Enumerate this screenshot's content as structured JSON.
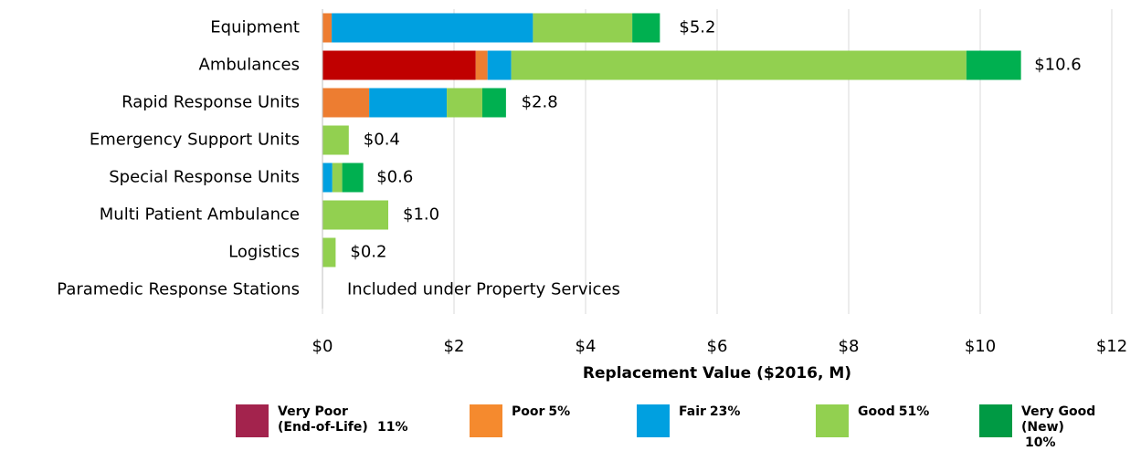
{
  "chart_data": {
    "type": "stacked-barh",
    "categories": [
      "Equipment",
      "Ambulances",
      "Rapid Response Units",
      "Emergency Support Units",
      "Special Response Units",
      "Multi Patient Ambulance",
      "Logistics",
      "Paramedic Response Stations"
    ],
    "series": [
      {
        "name": "Very Poor (End-of-Life)",
        "color": "#c00000",
        "legend_color": "#a3234d",
        "legend_note": "11%",
        "values": [
          0,
          2.33,
          0,
          0,
          0,
          0,
          0,
          0
        ]
      },
      {
        "name": "Poor",
        "color": "#ed7d31",
        "legend_color": "#f58a2e",
        "legend_note": "5%",
        "values": [
          0.14,
          0.18,
          0.71,
          0,
          0,
          0,
          0,
          0
        ]
      },
      {
        "name": "Fair",
        "color": "#00a0e0",
        "legend_color": "#00a0e0",
        "legend_note": "23%",
        "values": [
          3.06,
          0.36,
          1.18,
          0,
          0.15,
          0,
          0,
          0
        ]
      },
      {
        "name": "Good",
        "color": "#92d050",
        "legend_color": "#92d050",
        "legend_note": "51%",
        "values": [
          1.51,
          6.92,
          0.54,
          0.4,
          0.15,
          1.0,
          0.2,
          0
        ]
      },
      {
        "name": "Very Good (New)",
        "color": "#00b050",
        "legend_color": "#009a44",
        "legend_note": "10%",
        "values": [
          0.42,
          0.83,
          0.36,
          0,
          0.32,
          0,
          0,
          0
        ]
      }
    ],
    "totals": [
      5.2,
      10.6,
      2.8,
      0.4,
      0.6,
      1.0,
      0.2,
      null
    ],
    "total_labels": [
      "$5.2",
      "$10.6",
      "$2.8",
      "$0.4",
      "$0.6",
      "$1.0",
      "$0.2",
      null
    ],
    "annotation": "Included under Property Services",
    "xlabel": "Replacement Value ($2016, M)",
    "xlim": [
      0,
      12
    ],
    "xticks": [
      {
        "value": 0,
        "label": "$0"
      },
      {
        "value": 2,
        "label": "$2"
      },
      {
        "value": 4,
        "label": "$4"
      },
      {
        "value": 6,
        "label": "$6"
      },
      {
        "value": 8,
        "label": "$8"
      },
      {
        "value": 10,
        "label": "$10"
      },
      {
        "value": 12,
        "label": "$12"
      }
    ],
    "grid": true
  }
}
